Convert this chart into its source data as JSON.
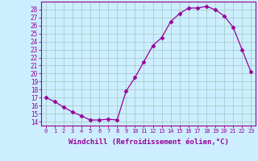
{
  "x": [
    0,
    1,
    2,
    3,
    4,
    5,
    6,
    7,
    8,
    9,
    10,
    11,
    12,
    13,
    14,
    15,
    16,
    17,
    18,
    19,
    20,
    21,
    22,
    23
  ],
  "y": [
    17.0,
    16.5,
    15.8,
    15.2,
    14.7,
    14.2,
    14.2,
    14.3,
    14.2,
    17.8,
    19.5,
    21.5,
    23.5,
    24.5,
    26.5,
    27.5,
    28.2,
    28.2,
    28.4,
    28.0,
    27.2,
    25.8,
    23.0,
    20.2
  ],
  "line_color": "#990099",
  "marker": "D",
  "marker_size": 2.5,
  "bg_color": "#cceeff",
  "grid_color": "#aacccc",
  "xlabel": "Windchill (Refroidissement éolien,°C)",
  "xlim": [
    -0.5,
    23.5
  ],
  "ylim": [
    13.5,
    29.0
  ],
  "yticks": [
    14,
    15,
    16,
    17,
    18,
    19,
    20,
    21,
    22,
    23,
    24,
    25,
    26,
    27,
    28
  ],
  "xticks": [
    0,
    1,
    2,
    3,
    4,
    5,
    6,
    7,
    8,
    9,
    10,
    11,
    12,
    13,
    14,
    15,
    16,
    17,
    18,
    19,
    20,
    21,
    22,
    23
  ],
  "tick_color": "#990099",
  "axis_color": "#990099",
  "xlabel_fontsize": 6.5,
  "ytick_fontsize": 5.5,
  "xtick_fontsize": 5.0
}
